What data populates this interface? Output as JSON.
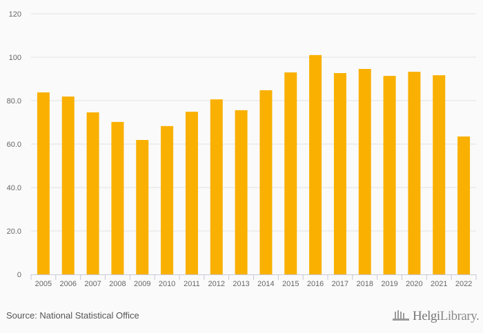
{
  "chart_data": {
    "type": "bar",
    "title": "",
    "xlabel": "",
    "ylabel": "",
    "categories": [
      "2005",
      "2006",
      "2007",
      "2008",
      "2009",
      "2010",
      "2011",
      "2012",
      "2013",
      "2014",
      "2015",
      "2016",
      "2017",
      "2018",
      "2019",
      "2020",
      "2021",
      "2022"
    ],
    "values": [
      83.8,
      81.9,
      74.6,
      70.2,
      61.9,
      68.3,
      74.9,
      80.6,
      75.6,
      84.8,
      93.0,
      101.0,
      92.7,
      94.6,
      91.4,
      93.3,
      91.7,
      63.5
    ],
    "ylim": [
      0,
      120
    ],
    "yticks": [
      0,
      20,
      40,
      60,
      80,
      100,
      120
    ],
    "ytick_labels": [
      "0",
      "20.0",
      "40.0",
      "60.0",
      "80.0",
      "100",
      "120"
    ],
    "grid": true,
    "bar_color": "#f9b000"
  },
  "footer": {
    "source": "Source: National Statistical Office",
    "logo_text_bold": "Helgi",
    "logo_text": "Library."
  }
}
